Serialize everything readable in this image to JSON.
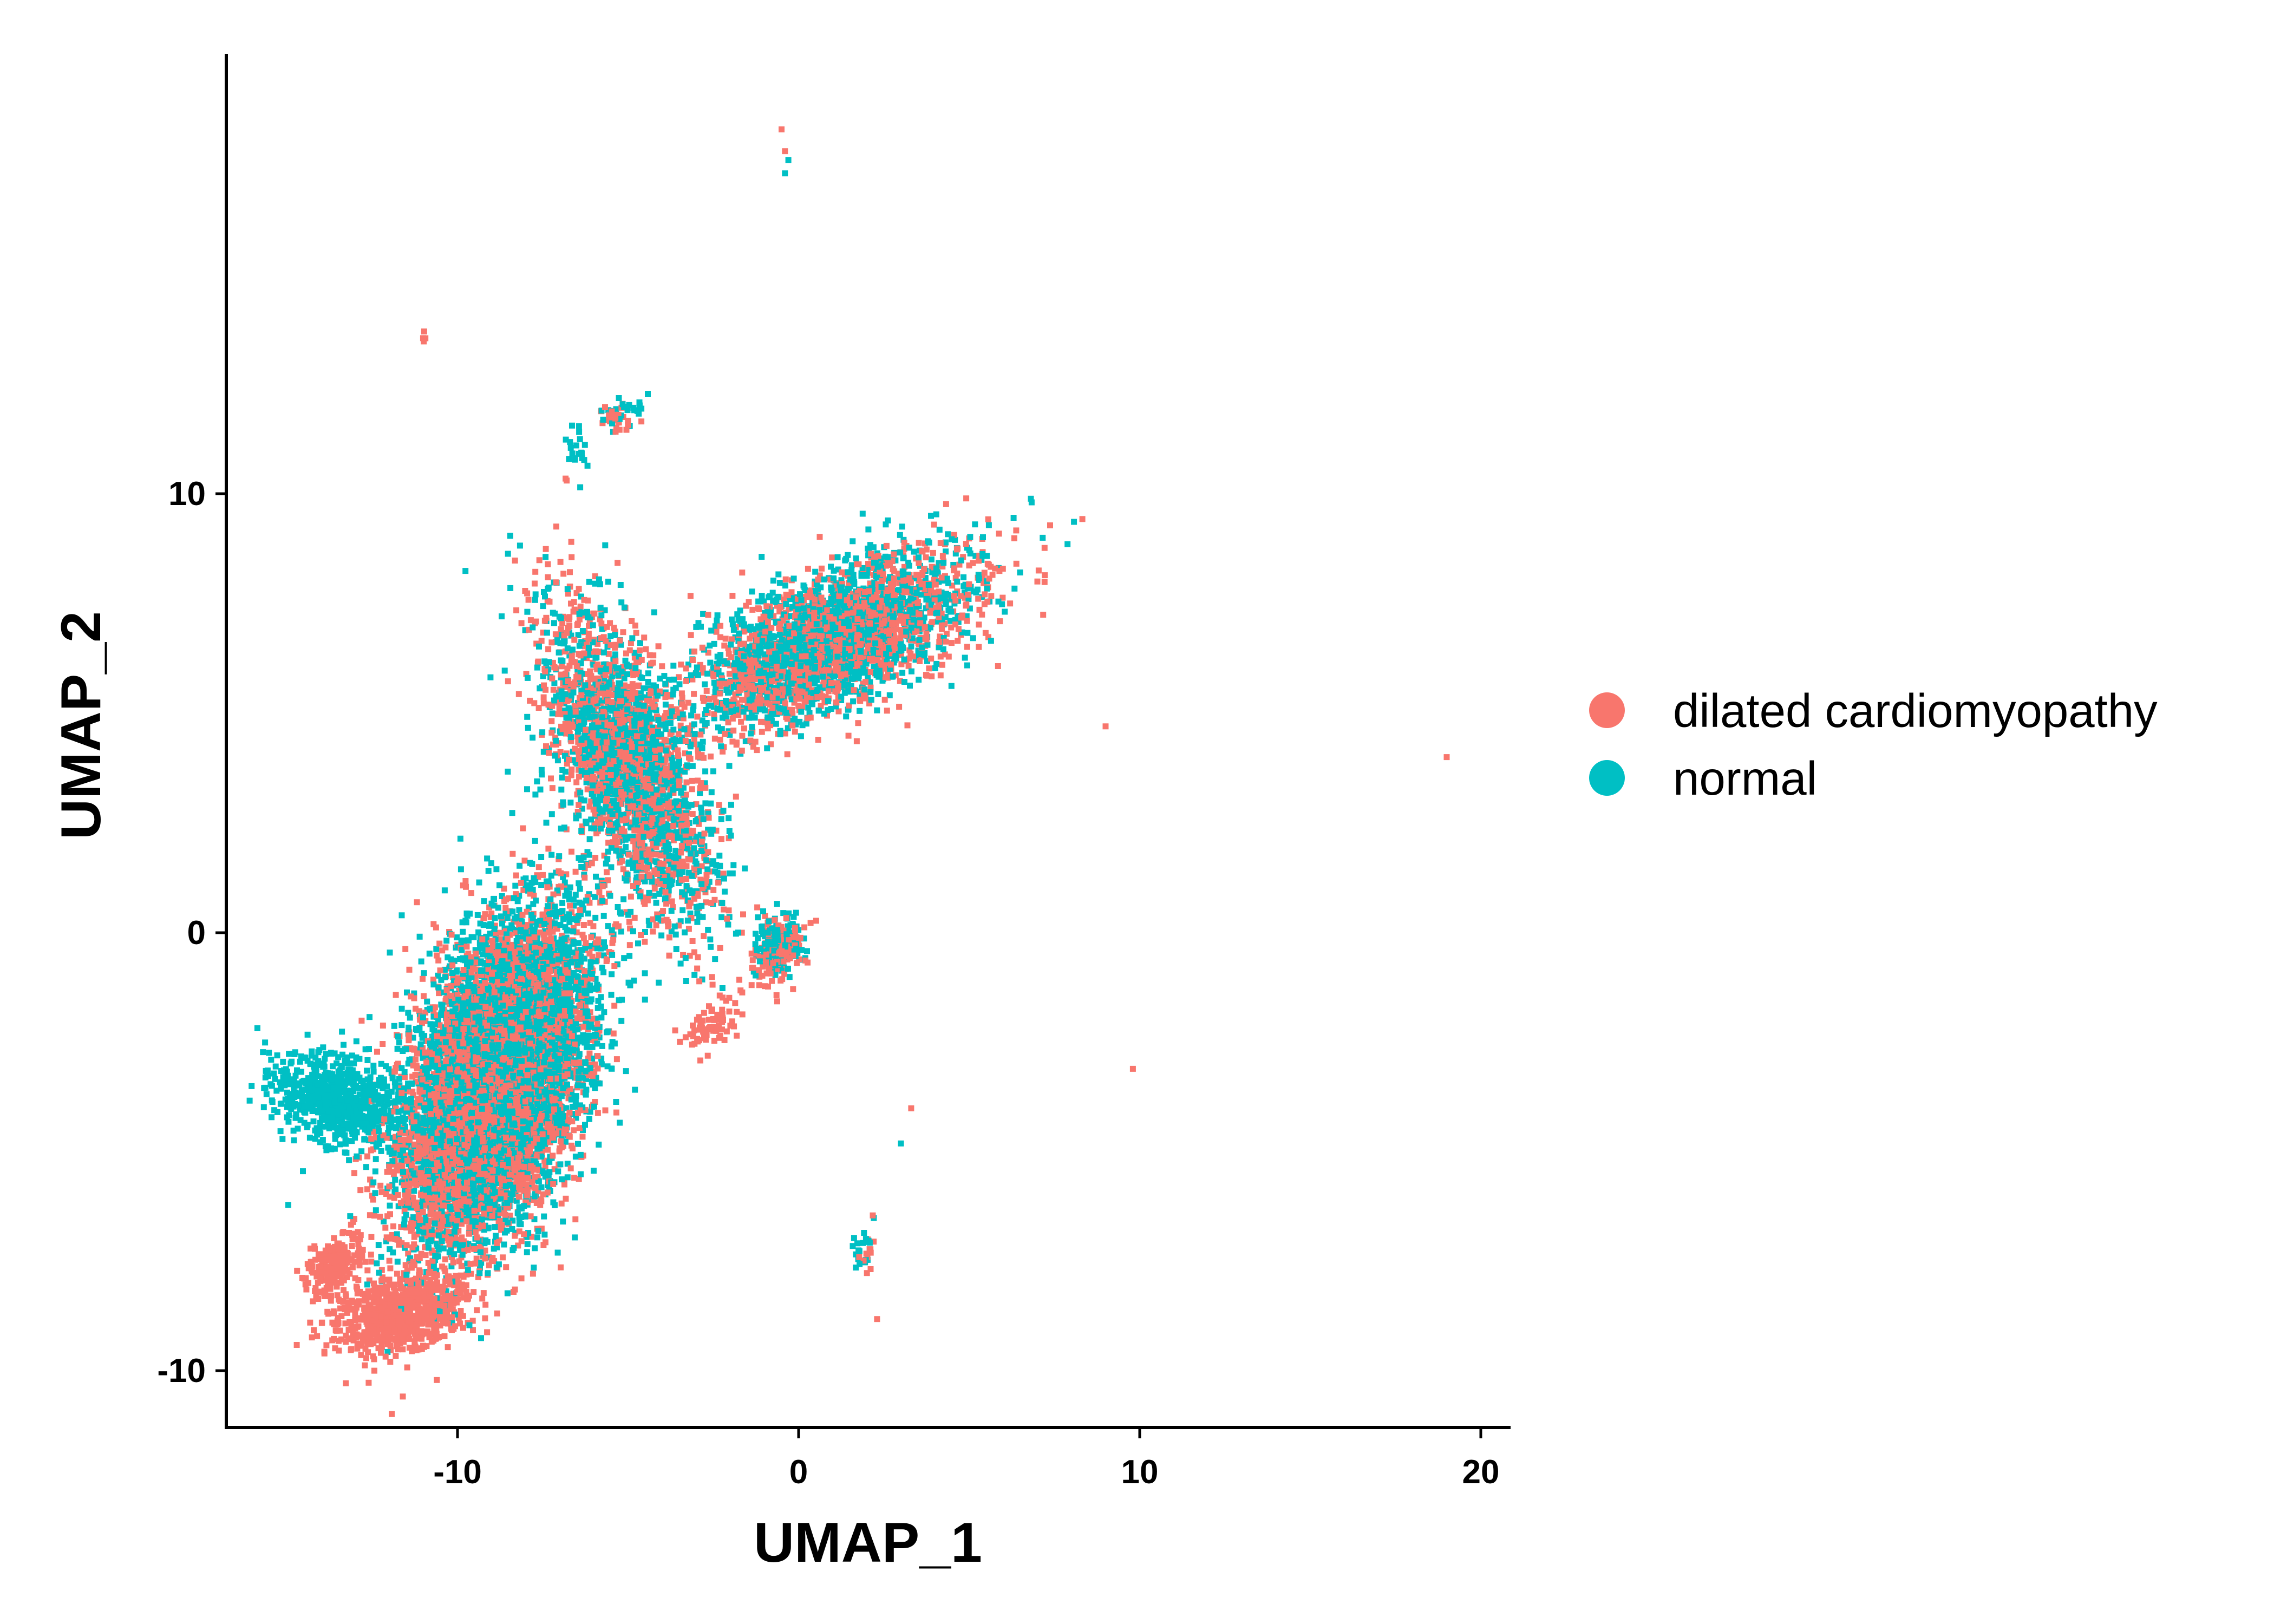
{
  "chart_data": {
    "type": "scatter",
    "xlabel": "UMAP_1",
    "ylabel": "UMAP_2",
    "xlim": [
      -16.8,
      20.8
    ],
    "ylim": [
      -11.3,
      20
    ],
    "xticks": [
      -10,
      0,
      10,
      20
    ],
    "yticks": [
      -10,
      0,
      10
    ],
    "grid": false,
    "legend_position": "right",
    "series": [
      {
        "name": "dilated cardiomyopathy",
        "color": "#F8766D",
        "regions": [
          {
            "center": [
              -9.0,
              -3.5
            ],
            "spread": [
              3.5,
              1.9
            ],
            "angle_deg": 62,
            "weight": 0.4
          },
          {
            "center": [
              -5.0,
              3.8
            ],
            "spread": [
              1.5,
              3.6
            ],
            "angle_deg": 30,
            "weight": 0.11
          },
          {
            "center": [
              1.0,
              6.6
            ],
            "spread": [
              3.8,
              1.3
            ],
            "angle_deg": 20,
            "weight": 0.13
          },
          {
            "center": [
              -11.7,
              -8.7
            ],
            "spread": [
              1.7,
              0.7
            ],
            "angle_deg": 10,
            "weight": 0.07
          },
          {
            "center": [
              -13.6,
              -7.6
            ],
            "spread": [
              0.8,
              0.5
            ],
            "angle_deg": 30,
            "weight": 0.02
          },
          {
            "center": [
              -0.6,
              -0.4
            ],
            "spread": [
              0.7,
              0.6
            ],
            "angle_deg": 40,
            "weight": 0.012
          },
          {
            "center": [
              -2.5,
              -2.1
            ],
            "spread": [
              1.0,
              0.5
            ],
            "angle_deg": 35,
            "weight": 0.006
          },
          {
            "center": [
              -5.3,
              11.7
            ],
            "spread": [
              0.5,
              0.3
            ],
            "angle_deg": 0,
            "weight": 0.002
          },
          {
            "center": [
              2.0,
              -7.3
            ],
            "spread": [
              0.3,
              0.5
            ],
            "angle_deg": 0,
            "weight": 0.001
          },
          {
            "center": [
              -11.0,
              13.6
            ],
            "spread": [
              0.1,
              0.1
            ],
            "angle_deg": 0,
            "weight": 0.0003
          }
        ],
        "outliers": [
          [
            -0.5,
            18.3
          ],
          [
            -0.4,
            17.8
          ],
          [
            6.2,
            7.5
          ],
          [
            7.0,
            8.0
          ],
          [
            9.0,
            4.7
          ],
          [
            19.0,
            4.0
          ],
          [
            9.8,
            -3.1
          ],
          [
            3.3,
            -4.0
          ],
          [
            2.3,
            -8.8
          ],
          [
            -6.8,
            10.3
          ]
        ]
      },
      {
        "name": "normal",
        "color": "#00BFC4",
        "regions": [
          {
            "center": [
              -8.8,
              -3.3
            ],
            "spread": [
              3.5,
              2.0
            ],
            "angle_deg": 62,
            "weight": 0.4
          },
          {
            "center": [
              -13.5,
              -3.8
            ],
            "spread": [
              0.9,
              1.7
            ],
            "angle_deg": 78,
            "weight": 0.06
          },
          {
            "center": [
              -5.0,
              3.9
            ],
            "spread": [
              1.5,
              3.6
            ],
            "angle_deg": 30,
            "weight": 0.11
          },
          {
            "center": [
              1.0,
              6.7
            ],
            "spread": [
              3.8,
              1.3
            ],
            "angle_deg": 20,
            "weight": 0.13
          },
          {
            "center": [
              -0.6,
              -0.2
            ],
            "spread": [
              0.6,
              0.6
            ],
            "angle_deg": 40,
            "weight": 0.012
          },
          {
            "center": [
              -5.2,
              11.8
            ],
            "spread": [
              0.7,
              0.35
            ],
            "angle_deg": 10,
            "weight": 0.002
          },
          {
            "center": [
              -6.5,
              11.0
            ],
            "spread": [
              0.3,
              0.6
            ],
            "angle_deg": 20,
            "weight": 0.0015
          },
          {
            "center": [
              1.9,
              -7.3
            ],
            "spread": [
              0.3,
              0.55
            ],
            "angle_deg": 0,
            "weight": 0.0015
          }
        ],
        "outliers": [
          [
            -0.4,
            17.3
          ],
          [
            -0.3,
            17.6
          ],
          [
            3.0,
            -4.8
          ]
        ]
      }
    ]
  },
  "legend": {
    "items": [
      {
        "label": "dilated cardiomyopathy",
        "color": "#F8766D"
      },
      {
        "label": "normal",
        "color": "#00BFC4"
      }
    ]
  },
  "axes": {
    "x_ticks": [
      "-10",
      "0",
      "10",
      "20"
    ],
    "y_ticks": [
      "-10",
      "0",
      "10"
    ],
    "x_title": "UMAP_1",
    "y_title": "UMAP_2"
  }
}
